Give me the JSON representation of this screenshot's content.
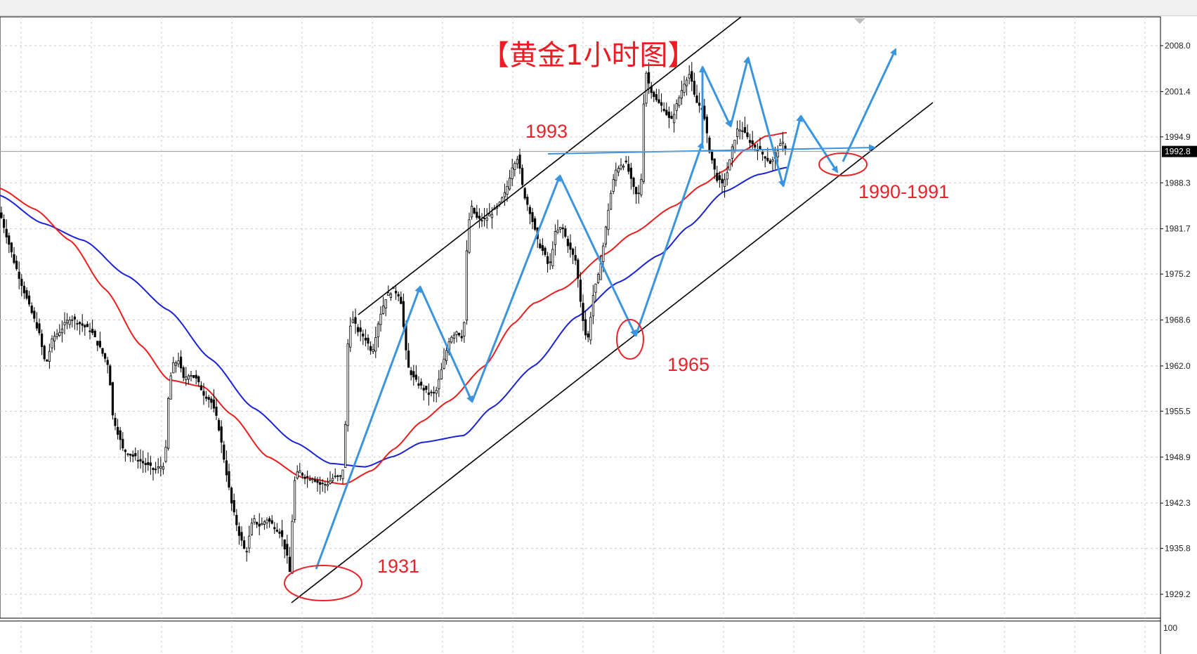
{
  "chart_data": {
    "type": "candlestick",
    "title": "【黄金1小时图】",
    "ylim": [
      1926.0,
      2012.0
    ],
    "y_ticks": [
      "2008.0",
      "2001.4",
      "1994.9",
      "1988.3",
      "1981.7",
      "1975.2",
      "1968.6",
      "1962.0",
      "1955.5",
      "1948.9",
      "1942.3",
      "1935.8",
      "1929.2"
    ],
    "current_price": "1992.8",
    "sub_panel_label": "100",
    "grid": true,
    "colors": {
      "candles": "#000000",
      "ma_fast": "#ee1c1c",
      "ma_slow": "#1a22d6",
      "trendlines": "#000000",
      "waves": "#3b94de",
      "annotations": "#e8242a"
    },
    "close_path": [
      [
        0,
        1984
      ],
      [
        20,
        1977
      ],
      [
        40,
        1971
      ],
      [
        55,
        1967
      ],
      [
        65,
        1962
      ],
      [
        75,
        1966
      ],
      [
        85,
        1967
      ],
      [
        100,
        1969
      ],
      [
        115,
        1968
      ],
      [
        130,
        1967
      ],
      [
        145,
        1964
      ],
      [
        155,
        1962
      ],
      [
        160,
        1955
      ],
      [
        175,
        1950
      ],
      [
        190,
        1949
      ],
      [
        205,
        1948
      ],
      [
        220,
        1947
      ],
      [
        235,
        1948
      ],
      [
        240,
        1958
      ],
      [
        245,
        1962
      ],
      [
        255,
        1963
      ],
      [
        260,
        1960
      ],
      [
        270,
        1961
      ],
      [
        280,
        1960
      ],
      [
        290,
        1958
      ],
      [
        300,
        1957
      ],
      [
        310,
        1954
      ],
      [
        320,
        1948
      ],
      [
        330,
        1942
      ],
      [
        340,
        1938
      ],
      [
        350,
        1935
      ],
      [
        360,
        1940
      ],
      [
        370,
        1939
      ],
      [
        380,
        1940
      ],
      [
        390,
        1939
      ],
      [
        400,
        1938
      ],
      [
        410,
        1934
      ],
      [
        413,
        1932
      ],
      [
        418,
        1945
      ],
      [
        425,
        1947
      ],
      [
        435,
        1946
      ],
      [
        445,
        1946
      ],
      [
        455,
        1945
      ],
      [
        465,
        1945
      ],
      [
        475,
        1946
      ],
      [
        485,
        1946
      ],
      [
        490,
        1948
      ],
      [
        495,
        1965
      ],
      [
        500,
        1969
      ],
      [
        510,
        1967
      ],
      [
        520,
        1966
      ],
      [
        530,
        1964
      ],
      [
        540,
        1969
      ],
      [
        550,
        1972
      ],
      [
        560,
        1973
      ],
      [
        570,
        1972
      ],
      [
        580,
        1962
      ],
      [
        590,
        1960
      ],
      [
        600,
        1959
      ],
      [
        610,
        1958
      ],
      [
        620,
        1958
      ],
      [
        630,
        1962
      ],
      [
        640,
        1966
      ],
      [
        650,
        1967
      ],
      [
        660,
        1966
      ],
      [
        665,
        1980
      ],
      [
        670,
        1985
      ],
      [
        680,
        1983
      ],
      [
        690,
        1983
      ],
      [
        700,
        1984
      ],
      [
        710,
        1985
      ],
      [
        720,
        1987
      ],
      [
        730,
        1991
      ],
      [
        737,
        1992
      ],
      [
        745,
        1987
      ],
      [
        755,
        1984
      ],
      [
        765,
        1980
      ],
      [
        775,
        1978
      ],
      [
        782,
        1976
      ],
      [
        790,
        1981
      ],
      [
        800,
        1982
      ],
      [
        810,
        1979
      ],
      [
        820,
        1977
      ],
      [
        828,
        1970
      ],
      [
        836,
        1965
      ],
      [
        844,
        1972
      ],
      [
        852,
        1975
      ],
      [
        860,
        1980
      ],
      [
        868,
        1986
      ],
      [
        876,
        1990
      ],
      [
        884,
        1991
      ],
      [
        892,
        1991
      ],
      [
        900,
        1988
      ],
      [
        908,
        1986
      ],
      [
        913,
        1989
      ],
      [
        918,
        2005
      ],
      [
        925,
        2002
      ],
      [
        935,
        2000
      ],
      [
        945,
        1999
      ],
      [
        955,
        1997
      ],
      [
        965,
        2000
      ],
      [
        975,
        2003
      ],
      [
        982,
        2004
      ],
      [
        990,
        2000
      ],
      [
        1000,
        1999
      ],
      [
        1010,
        1993
      ],
      [
        1020,
        1989
      ],
      [
        1028,
        1988
      ],
      [
        1036,
        1990
      ],
      [
        1044,
        1994
      ],
      [
        1050,
        1996
      ],
      [
        1056,
        1996
      ],
      [
        1062,
        1995
      ],
      [
        1070,
        1994
      ],
      [
        1080,
        1993
      ],
      [
        1090,
        1992
      ],
      [
        1098,
        1991
      ],
      [
        1106,
        1993
      ],
      [
        1114,
        1994
      ],
      [
        1120,
        1993
      ]
    ],
    "ma_fast": [
      [
        0,
        1987.5
      ],
      [
        50,
        1984.5
      ],
      [
        100,
        1980
      ],
      [
        150,
        1973
      ],
      [
        200,
        1965
      ],
      [
        240,
        1960
      ],
      [
        290,
        1959
      ],
      [
        330,
        1955
      ],
      [
        380,
        1949
      ],
      [
        430,
        1946
      ],
      [
        490,
        1945
      ],
      [
        530,
        1947
      ],
      [
        560,
        1950
      ],
      [
        600,
        1954
      ],
      [
        640,
        1957
      ],
      [
        690,
        1962
      ],
      [
        730,
        1968
      ],
      [
        760,
        1971
      ],
      [
        800,
        1973
      ],
      [
        860,
        1978
      ],
      [
        900,
        1981
      ],
      [
        960,
        1985
      ],
      [
        1000,
        1988
      ],
      [
        1030,
        1990
      ],
      [
        1060,
        1993
      ],
      [
        1090,
        1995
      ],
      [
        1120,
        1995.5
      ]
    ],
    "ma_slow": [
      [
        0,
        1986.5
      ],
      [
        60,
        1982.5
      ],
      [
        120,
        1980
      ],
      [
        180,
        1975
      ],
      [
        240,
        1970
      ],
      [
        300,
        1963
      ],
      [
        360,
        1956
      ],
      [
        420,
        1951
      ],
      [
        470,
        1948
      ],
      [
        520,
        1947.5
      ],
      [
        560,
        1949
      ],
      [
        600,
        1951
      ],
      [
        660,
        1952
      ],
      [
        700,
        1956
      ],
      [
        760,
        1962
      ],
      [
        820,
        1969
      ],
      [
        880,
        1974
      ],
      [
        940,
        1978
      ],
      [
        980,
        1982
      ],
      [
        1030,
        1987
      ],
      [
        1080,
        1989.5
      ],
      [
        1120,
        1990.5
      ]
    ]
  },
  "annotations": [
    "1993",
    "1931",
    "1965",
    "1990-1991"
  ]
}
